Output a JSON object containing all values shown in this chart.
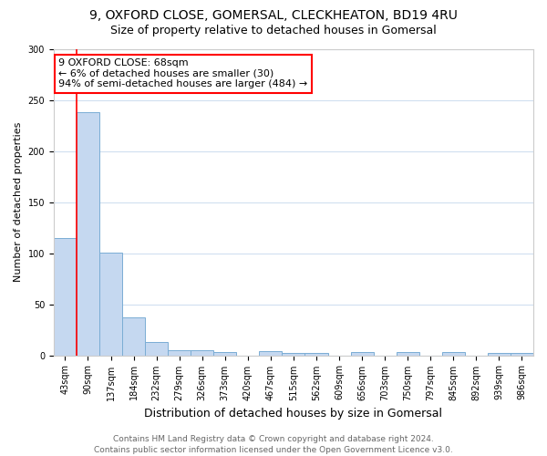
{
  "title1": "9, OXFORD CLOSE, GOMERSAL, CLECKHEATON, BD19 4RU",
  "title2": "Size of property relative to detached houses in Gomersal",
  "xlabel": "Distribution of detached houses by size in Gomersal",
  "ylabel": "Number of detached properties",
  "categories": [
    "43sqm",
    "90sqm",
    "137sqm",
    "184sqm",
    "232sqm",
    "279sqm",
    "326sqm",
    "373sqm",
    "420sqm",
    "467sqm",
    "515sqm",
    "562sqm",
    "609sqm",
    "656sqm",
    "703sqm",
    "750sqm",
    "797sqm",
    "845sqm",
    "892sqm",
    "939sqm",
    "986sqm"
  ],
  "values": [
    115,
    238,
    101,
    37,
    13,
    5,
    5,
    3,
    0,
    4,
    2,
    2,
    0,
    3,
    0,
    3,
    0,
    3,
    0,
    2,
    2
  ],
  "bar_color": "#c5d8f0",
  "bar_edge_color": "#7aadd4",
  "annotation_text": "9 OXFORD CLOSE: 68sqm\n← 6% of detached houses are smaller (30)\n94% of semi-detached houses are larger (484) →",
  "annotation_box_facecolor": "white",
  "annotation_box_edgecolor": "red",
  "vline_color": "red",
  "ylim": [
    0,
    300
  ],
  "yticks": [
    0,
    50,
    100,
    150,
    200,
    250,
    300
  ],
  "footer": "Contains HM Land Registry data © Crown copyright and database right 2024.\nContains public sector information licensed under the Open Government Licence v3.0.",
  "background_color": "#ffffff",
  "grid_color": "#d0dff0",
  "title_fontsize": 10,
  "subtitle_fontsize": 9,
  "xlabel_fontsize": 9,
  "ylabel_fontsize": 8,
  "tick_fontsize": 7,
  "annotation_fontsize": 8,
  "footer_fontsize": 6.5
}
